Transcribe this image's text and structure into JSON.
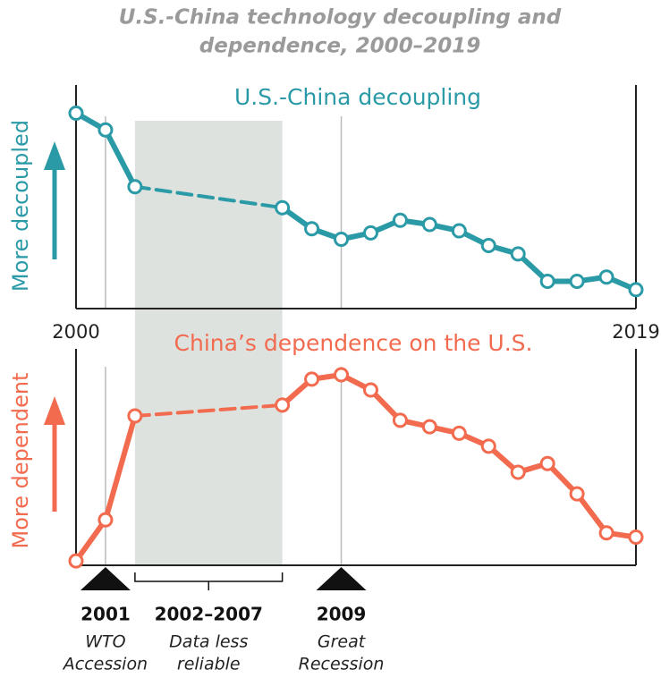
{
  "title": [
    "U.S.-China technology decoupling and",
    "dependence, 2000–2019"
  ],
  "chart_data": [
    {
      "type": "line",
      "title": "U.S.-China decoupling",
      "y_label": "More decoupled",
      "color": "#2b9aa7",
      "x": [
        2000,
        2001,
        2002,
        2003,
        2004,
        2005,
        2006,
        2007,
        2008,
        2009,
        2010,
        2011,
        2012,
        2013,
        2014,
        2015,
        2016,
        2017,
        2018,
        2019
      ],
      "values": [
        93,
        85,
        58,
        null,
        null,
        null,
        null,
        48,
        38,
        33,
        36,
        42,
        40,
        37,
        30,
        26,
        13,
        13,
        15,
        9
      ],
      "xlim": [
        2000,
        2019
      ],
      "xticks": [
        2000,
        2019
      ],
      "ylim": [
        0,
        100
      ]
    },
    {
      "type": "line",
      "title": "China’s dependence on the U.S.",
      "y_label": "More dependent",
      "color": "#f26b4f",
      "x": [
        2000,
        2001,
        2002,
        2003,
        2004,
        2005,
        2006,
        2007,
        2008,
        2009,
        2010,
        2011,
        2012,
        2013,
        2014,
        2015,
        2016,
        2017,
        2018,
        2019
      ],
      "values": [
        2,
        21,
        69,
        null,
        null,
        null,
        null,
        74,
        86,
        88,
        81,
        67,
        64,
        61,
        55,
        43,
        47,
        33,
        15,
        13
      ],
      "xlim": [
        2000,
        2019
      ],
      "ylim": [
        0,
        100
      ]
    }
  ],
  "annotations": {
    "events": [
      {
        "x": 2001,
        "lines": [
          "WTO",
          "Accession"
        ]
      },
      {
        "x": 2009,
        "lines": [
          "Great",
          "Recession"
        ]
      }
    ],
    "shade": {
      "x": [
        2002,
        2007
      ],
      "label": "2002–2007",
      "lines": [
        "Data less",
        "reliable"
      ]
    }
  }
}
